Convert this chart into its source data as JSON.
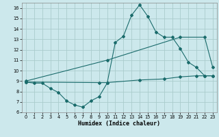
{
  "title": "",
  "xlabel": "Humidex (Indice chaleur)",
  "ylabel": "",
  "xlim": [
    -0.5,
    23.5
  ],
  "ylim": [
    6,
    16.5
  ],
  "yticks": [
    6,
    7,
    8,
    9,
    10,
    11,
    12,
    13,
    14,
    15,
    16
  ],
  "xticks": [
    0,
    1,
    2,
    3,
    4,
    5,
    6,
    7,
    8,
    9,
    10,
    11,
    12,
    13,
    14,
    15,
    16,
    17,
    18,
    19,
    20,
    21,
    22,
    23
  ],
  "background_color": "#cce8ec",
  "grid_color": "#aacccc",
  "line_color": "#1a6b6b",
  "line1_x": [
    0,
    1,
    2,
    3,
    4,
    5,
    6,
    7,
    8,
    9,
    10,
    11,
    12,
    13,
    14,
    15,
    16,
    17,
    18,
    19,
    20,
    21,
    22,
    23
  ],
  "line1_y": [
    8.9,
    8.8,
    8.8,
    8.3,
    7.9,
    7.1,
    6.7,
    6.5,
    7.1,
    7.5,
    8.8,
    12.7,
    13.3,
    15.3,
    16.3,
    15.2,
    13.7,
    13.2,
    13.2,
    12.1,
    10.8,
    10.3,
    9.5,
    9.5
  ],
  "line2_x": [
    0,
    10,
    19,
    22,
    23
  ],
  "line2_y": [
    9.0,
    11.0,
    13.2,
    13.2,
    10.3
  ],
  "line3_x": [
    0,
    9,
    10,
    14,
    17,
    19,
    21,
    22,
    23
  ],
  "line3_y": [
    8.9,
    8.85,
    8.85,
    9.1,
    9.2,
    9.4,
    9.5,
    9.5,
    9.5
  ]
}
